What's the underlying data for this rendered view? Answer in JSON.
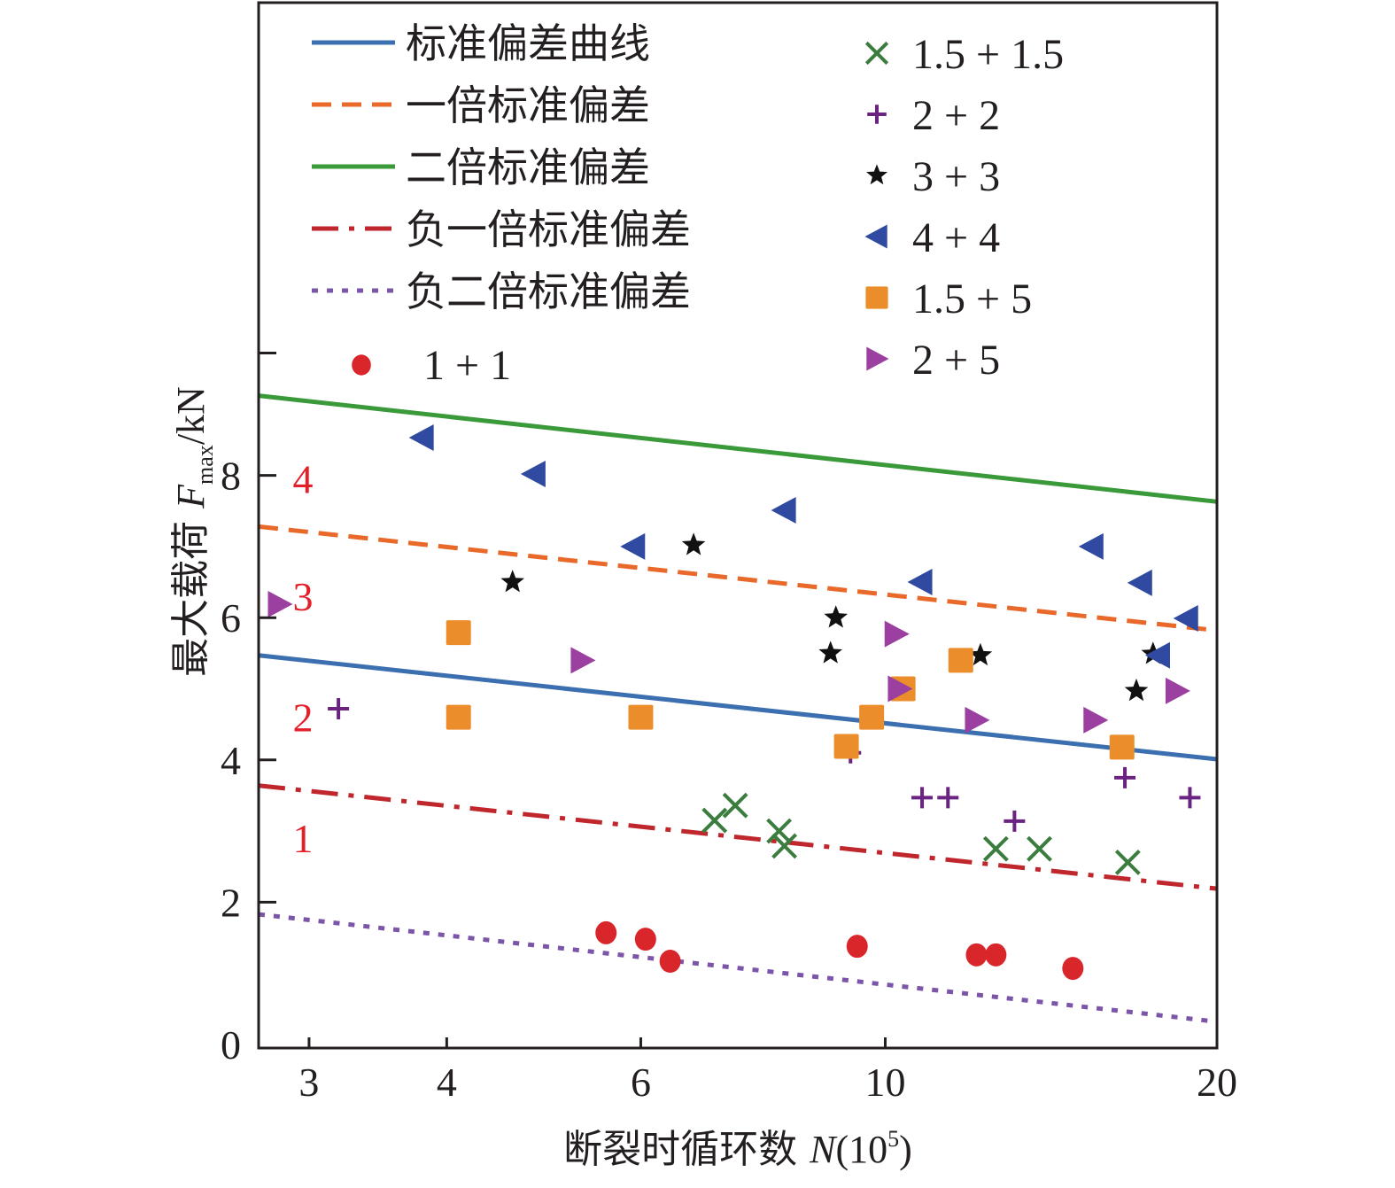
{
  "chart_data": {
    "type": "scatter",
    "title": "",
    "xlabel": {
      "main": "断裂时循环数 ",
      "var": "N",
      "unit": "(10",
      "exp": "5",
      "close": ")"
    },
    "ylabel": {
      "main": "最大载荷 ",
      "var": "F",
      "sub": "max",
      "unit": "/kN"
    },
    "xscale": "log",
    "xlim": [
      2.7,
      20
    ],
    "ylim": [
      0,
      14.6
    ],
    "xticks": [
      3,
      4,
      6,
      10,
      20
    ],
    "xtick_labels": [
      "3",
      "4",
      "6",
      "10",
      "20"
    ],
    "yticks": [
      0,
      2,
      4,
      6,
      8,
      9.72
    ],
    "ytick_labels": [
      "0",
      "2",
      "4",
      "6",
      "8",
      ""
    ],
    "grid": false,
    "legend_placement": "top",
    "region_labels": [
      {
        "text": "1",
        "y": 2.9
      },
      {
        "text": "2",
        "y": 4.6
      },
      {
        "text": "3",
        "y": 6.3
      },
      {
        "text": "4",
        "y": 7.95
      }
    ],
    "lines": [
      {
        "name": "标准偏差曲线",
        "color": "#3b6fb0",
        "style": "solid",
        "x": [
          2.7,
          20
        ],
        "y": [
          5.47,
          4.01
        ]
      },
      {
        "name": "一倍标准偏差",
        "color": "#e8692a",
        "style": "dashed",
        "x": [
          2.7,
          20
        ],
        "y": [
          7.28,
          5.82
        ]
      },
      {
        "name": "二倍标准偏差",
        "color": "#3a9a3a",
        "style": "solid",
        "x": [
          2.7,
          20
        ],
        "y": [
          9.12,
          7.63
        ]
      },
      {
        "name": "负一倍标准偏差",
        "color": "#c0272d",
        "style": "dashdot",
        "x": [
          2.7,
          20
        ],
        "y": [
          3.64,
          2.19
        ]
      },
      {
        "name": "负二倍标准偏差",
        "color": "#7b55a8",
        "style": "dotted",
        "x": [
          2.7,
          20
        ],
        "y": [
          1.83,
          0.32
        ]
      }
    ],
    "series": [
      {
        "name": "1 + 1",
        "marker": "circle",
        "color": "#d9262b",
        "x": [
          5.58,
          6.06,
          6.38,
          9.43,
          12.1,
          12.6,
          14.8
        ],
        "y": [
          1.57,
          1.48,
          1.17,
          1.38,
          1.26,
          1.26,
          1.07
        ]
      },
      {
        "name": "1.5 + 1.5",
        "marker": "x",
        "color": "#3a7d3e",
        "x": [
          7.0,
          7.31,
          8.01,
          8.1,
          12.6,
          13.8,
          16.6
        ],
        "y": [
          3.15,
          3.36,
          3.0,
          2.79,
          2.75,
          2.75,
          2.56
        ]
      },
      {
        "name": "2 + 2",
        "marker": "plus",
        "color": "#6a2380",
        "x": [
          3.19,
          9.3,
          10.8,
          11.4,
          13.1,
          16.5,
          18.9
        ],
        "y": [
          4.72,
          4.1,
          3.47,
          3.47,
          3.14,
          3.75,
          3.47
        ]
      },
      {
        "name": "3 + 3",
        "marker": "star",
        "color": "#111111",
        "x": [
          4.59,
          6.7,
          8.92,
          9.02,
          12.2,
          16.9,
          17.5
        ],
        "y": [
          6.5,
          7.02,
          5.5,
          6.0,
          5.47,
          4.97,
          5.49
        ]
      },
      {
        "name": "4 + 4",
        "marker": "triangle-left",
        "color": "#2f4aa0",
        "x": [
          3.8,
          4.8,
          5.91,
          8.1,
          10.77,
          15.4,
          17.05,
          17.7,
          18.77
        ],
        "y": [
          8.53,
          8.02,
          7.0,
          7.51,
          6.5,
          7.0,
          6.49,
          5.47,
          5.99
        ]
      },
      {
        "name": "1.5 + 5",
        "marker": "square",
        "color": "#ea8d2a",
        "x": [
          4.1,
          4.1,
          6.0,
          9.22,
          9.72,
          10.38,
          11.71,
          16.4
        ],
        "y": [
          5.79,
          4.6,
          4.6,
          4.19,
          4.6,
          5.0,
          5.4,
          4.18
        ]
      },
      {
        "name": "2 + 5",
        "marker": "triangle-right",
        "color": "#9b3fa0",
        "x": [
          2.82,
          5.31,
          10.23,
          10.3,
          12.1,
          15.5,
          18.4
        ],
        "y": [
          6.19,
          5.4,
          5.77,
          5.0,
          4.56,
          4.56,
          4.97
        ]
      }
    ]
  }
}
